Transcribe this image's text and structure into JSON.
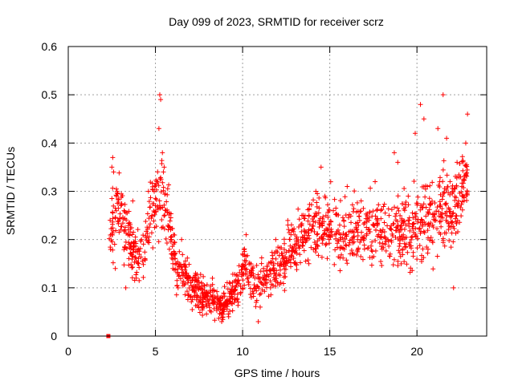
{
  "chart_data": {
    "type": "scatter",
    "title": "Day 099 of 2023, SRMTID for receiver scrz",
    "xlabel": "GPS time / hours",
    "ylabel": "SRMTID / TECUs",
    "xlim": [
      0,
      24
    ],
    "ylim": [
      0,
      0.6
    ],
    "x_ticks": [
      0,
      5,
      10,
      15,
      20
    ],
    "x_tick_labels": [
      "0",
      "5",
      "10",
      "15",
      "20"
    ],
    "y_ticks": [
      0,
      0.1,
      0.2,
      0.3,
      0.4,
      0.5,
      0.6
    ],
    "y_tick_labels": [
      "0",
      "0.1",
      "0.2",
      "0.3",
      "0.4",
      "0.5",
      "0.6"
    ],
    "grid": true,
    "marker": "plus",
    "series_color": "#ff0000",
    "zero_marker": {
      "x": 2.3,
      "y": 0.0,
      "marker": "square"
    },
    "trend": [
      {
        "x": 2.3,
        "y": 0.2,
        "spread": 0.06
      },
      {
        "x": 2.8,
        "y": 0.26,
        "spread": 0.07
      },
      {
        "x": 3.3,
        "y": 0.22,
        "spread": 0.06
      },
      {
        "x": 3.8,
        "y": 0.17,
        "spread": 0.05
      },
      {
        "x": 4.3,
        "y": 0.17,
        "spread": 0.05
      },
      {
        "x": 4.7,
        "y": 0.26,
        "spread": 0.05
      },
      {
        "x": 5.2,
        "y": 0.3,
        "spread": 0.09
      },
      {
        "x": 5.7,
        "y": 0.25,
        "spread": 0.06
      },
      {
        "x": 6.2,
        "y": 0.14,
        "spread": 0.04
      },
      {
        "x": 6.8,
        "y": 0.12,
        "spread": 0.04
      },
      {
        "x": 7.5,
        "y": 0.09,
        "spread": 0.035
      },
      {
        "x": 8.2,
        "y": 0.075,
        "spread": 0.03
      },
      {
        "x": 8.9,
        "y": 0.065,
        "spread": 0.03
      },
      {
        "x": 9.5,
        "y": 0.09,
        "spread": 0.035
      },
      {
        "x": 10.2,
        "y": 0.15,
        "spread": 0.05
      },
      {
        "x": 10.8,
        "y": 0.1,
        "spread": 0.04
      },
      {
        "x": 11.5,
        "y": 0.12,
        "spread": 0.04
      },
      {
        "x": 12.3,
        "y": 0.15,
        "spread": 0.05
      },
      {
        "x": 13.2,
        "y": 0.2,
        "spread": 0.05
      },
      {
        "x": 14.2,
        "y": 0.23,
        "spread": 0.06
      },
      {
        "x": 15.2,
        "y": 0.22,
        "spread": 0.06
      },
      {
        "x": 16.2,
        "y": 0.21,
        "spread": 0.06
      },
      {
        "x": 17.2,
        "y": 0.22,
        "spread": 0.06
      },
      {
        "x": 18.2,
        "y": 0.22,
        "spread": 0.06
      },
      {
        "x": 19.2,
        "y": 0.21,
        "spread": 0.07
      },
      {
        "x": 20.2,
        "y": 0.23,
        "spread": 0.08
      },
      {
        "x": 21.2,
        "y": 0.26,
        "spread": 0.09
      },
      {
        "x": 22.2,
        "y": 0.27,
        "spread": 0.08
      },
      {
        "x": 22.9,
        "y": 0.33,
        "spread": 0.06
      }
    ],
    "points": [
      [
        2.4,
        0.24
      ],
      [
        2.5,
        0.35
      ],
      [
        2.55,
        0.37
      ],
      [
        2.6,
        0.34
      ],
      [
        2.7,
        0.14
      ],
      [
        2.8,
        0.3
      ],
      [
        3.0,
        0.22
      ],
      [
        3.2,
        0.26
      ],
      [
        3.3,
        0.1
      ],
      [
        3.5,
        0.19
      ],
      [
        3.7,
        0.28
      ],
      [
        3.9,
        0.12
      ],
      [
        4.0,
        0.15
      ],
      [
        4.2,
        0.2
      ],
      [
        4.4,
        0.16
      ],
      [
        4.6,
        0.3
      ],
      [
        4.8,
        0.25
      ],
      [
        5.0,
        0.27
      ],
      [
        5.2,
        0.43
      ],
      [
        5.25,
        0.5
      ],
      [
        5.3,
        0.49
      ],
      [
        5.4,
        0.38
      ],
      [
        5.5,
        0.35
      ],
      [
        5.6,
        0.26
      ],
      [
        5.8,
        0.18
      ],
      [
        6.0,
        0.14
      ],
      [
        6.3,
        0.1
      ],
      [
        6.5,
        0.2
      ],
      [
        6.8,
        0.12
      ],
      [
        7.0,
        0.08
      ],
      [
        7.3,
        0.13
      ],
      [
        7.6,
        0.07
      ],
      [
        7.9,
        0.09
      ],
      [
        8.2,
        0.05
      ],
      [
        8.5,
        0.06
      ],
      [
        8.8,
        0.03
      ],
      [
        9.0,
        0.07
      ],
      [
        9.2,
        0.04
      ],
      [
        9.4,
        0.08
      ],
      [
        9.7,
        0.11
      ],
      [
        10.0,
        0.17
      ],
      [
        10.2,
        0.21
      ],
      [
        10.5,
        0.08
      ],
      [
        10.7,
        0.12
      ],
      [
        10.9,
        0.03
      ],
      [
        11.2,
        0.14
      ],
      [
        11.6,
        0.1
      ],
      [
        11.9,
        0.2
      ],
      [
        12.3,
        0.16
      ],
      [
        12.6,
        0.23
      ],
      [
        13.0,
        0.19
      ],
      [
        13.4,
        0.25
      ],
      [
        13.8,
        0.15
      ],
      [
        14.2,
        0.3
      ],
      [
        14.5,
        0.35
      ],
      [
        14.8,
        0.21
      ],
      [
        15.2,
        0.26
      ],
      [
        15.6,
        0.2
      ],
      [
        16.0,
        0.31
      ],
      [
        16.4,
        0.17
      ],
      [
        16.8,
        0.28
      ],
      [
        17.2,
        0.22
      ],
      [
        17.6,
        0.32
      ],
      [
        18.0,
        0.18
      ],
      [
        18.4,
        0.25
      ],
      [
        18.7,
        0.38
      ],
      [
        18.9,
        0.36
      ],
      [
        19.2,
        0.2
      ],
      [
        19.5,
        0.29
      ],
      [
        19.9,
        0.42
      ],
      [
        20.2,
        0.48
      ],
      [
        20.4,
        0.45
      ],
      [
        20.6,
        0.31
      ],
      [
        20.9,
        0.23
      ],
      [
        21.2,
        0.43
      ],
      [
        21.5,
        0.5
      ],
      [
        21.7,
        0.41
      ],
      [
        21.9,
        0.25
      ],
      [
        22.1,
        0.1
      ],
      [
        22.3,
        0.36
      ],
      [
        22.5,
        0.33
      ],
      [
        22.7,
        0.28
      ],
      [
        22.8,
        0.4
      ],
      [
        22.9,
        0.46
      ]
    ]
  }
}
